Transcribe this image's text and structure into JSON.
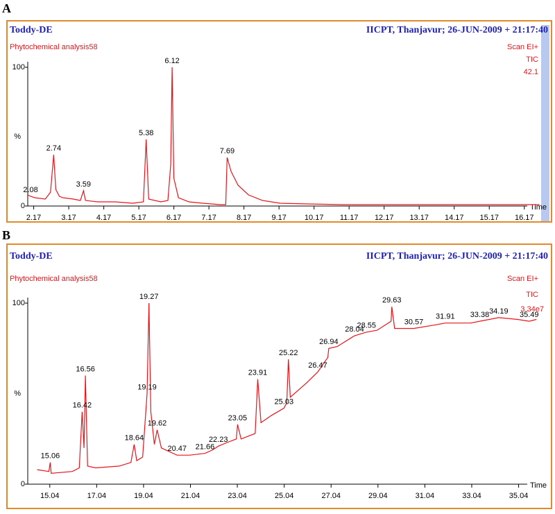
{
  "chart_data": [
    {
      "type": "line",
      "panel": "A",
      "title": "Toddy-DE",
      "subtitle": "IICPT, Thanjavur; 26-JUN-2009 + 21:17:40",
      "method": "Phytochemical analysis58",
      "scan": "Scan EI+",
      "trace": "TIC",
      "intensity": "42.1",
      "y_label": "%",
      "x_label": "Time",
      "xlim": [
        2.0,
        16.65
      ],
      "xticks": [
        2.17,
        3.17,
        4.17,
        5.17,
        6.17,
        7.17,
        8.17,
        9.17,
        10.17,
        11.17,
        12.17,
        13.17,
        14.17,
        15.17,
        16.17
      ],
      "ylim": [
        0,
        100
      ],
      "yticks": [
        0,
        100
      ],
      "series": [
        {
          "name": "TIC",
          "color": "#e8141a",
          "x": [
            2.0,
            2.08,
            2.2,
            2.5,
            2.65,
            2.74,
            2.8,
            2.9,
            3.0,
            3.3,
            3.5,
            3.59,
            3.65,
            4.0,
            4.5,
            5.0,
            5.3,
            5.38,
            5.45,
            5.8,
            6.0,
            6.08,
            6.12,
            6.17,
            6.3,
            6.6,
            7.0,
            7.5,
            7.65,
            7.69,
            7.8,
            8.0,
            8.3,
            8.7,
            9.2,
            10.0,
            11.0,
            13.0,
            16.6
          ],
          "values": [
            8,
            7,
            6,
            5,
            10,
            37,
            12,
            7,
            6,
            5,
            4,
            11,
            4,
            3,
            3,
            2,
            3,
            48,
            5,
            3,
            4,
            30,
            100,
            20,
            6,
            3,
            2,
            1,
            1,
            35,
            25,
            15,
            8,
            4,
            2,
            1.5,
            1,
            1,
            1
          ]
        }
      ],
      "peaks": [
        {
          "x": 2.08,
          "y": 7
        },
        {
          "x": 2.74,
          "y": 37
        },
        {
          "x": 3.59,
          "y": 11
        },
        {
          "x": 5.38,
          "y": 48
        },
        {
          "x": 6.12,
          "y": 100
        },
        {
          "x": 7.69,
          "y": 35
        }
      ]
    },
    {
      "type": "line",
      "panel": "B",
      "title": "Toddy-DE",
      "subtitle": "IICPT, Thanjavur; 26-JUN-2009 + 21:17:40",
      "method": "Phytochemical analysis58",
      "scan": "Scan EI+",
      "trace": "TIC",
      "intensity": "3.34e7",
      "y_label": "%",
      "x_label": "Time",
      "xlim": [
        14.1,
        36.0
      ],
      "xticks": [
        15.04,
        17.04,
        19.04,
        21.04,
        23.04,
        25.04,
        27.04,
        29.04,
        31.04,
        33.04,
        35.04
      ],
      "ylim": [
        0,
        100
      ],
      "yticks": [
        0,
        100
      ],
      "series": [
        {
          "name": "TIC",
          "color": "#e8141a",
          "x": [
            14.5,
            15.0,
            15.06,
            15.1,
            16.0,
            16.3,
            16.42,
            16.5,
            16.56,
            16.65,
            17.0,
            18.0,
            18.5,
            18.64,
            18.75,
            19.0,
            19.19,
            19.27,
            19.35,
            19.5,
            19.62,
            19.8,
            20.47,
            21.0,
            21.66,
            22.0,
            22.23,
            22.6,
            23.0,
            23.05,
            23.2,
            23.8,
            23.91,
            24.05,
            24.5,
            25.03,
            25.15,
            25.22,
            25.3,
            26.0,
            26.47,
            26.9,
            26.94,
            27.3,
            28.04,
            28.55,
            29.0,
            29.6,
            29.63,
            29.75,
            30.57,
            31.5,
            31.91,
            33.0,
            33.38,
            34.19,
            35.0,
            35.49,
            35.8
          ],
          "values": [
            8,
            7,
            12,
            6,
            7,
            9,
            40,
            20,
            60,
            10,
            9,
            10,
            12,
            22,
            13,
            15,
            50,
            100,
            40,
            22,
            30,
            20,
            16,
            16,
            17,
            19,
            21,
            23,
            25,
            33,
            25,
            28,
            58,
            34,
            38,
            42,
            45,
            69,
            48,
            56,
            62,
            70,
            75,
            76,
            82,
            84,
            85,
            90,
            98,
            86,
            86,
            88,
            89,
            89,
            90,
            92,
            91,
            90,
            91
          ]
        }
      ],
      "peaks": [
        {
          "x": 15.06,
          "y": 12
        },
        {
          "x": 16.42,
          "y": 40
        },
        {
          "x": 16.56,
          "y": 60
        },
        {
          "x": 18.64,
          "y": 22
        },
        {
          "x": 19.19,
          "y": 50
        },
        {
          "x": 19.27,
          "y": 100
        },
        {
          "x": 19.62,
          "y": 30
        },
        {
          "x": 20.47,
          "y": 16
        },
        {
          "x": 21.66,
          "y": 17
        },
        {
          "x": 22.23,
          "y": 21
        },
        {
          "x": 23.05,
          "y": 33
        },
        {
          "x": 23.91,
          "y": 58
        },
        {
          "x": 25.03,
          "y": 42
        },
        {
          "x": 25.22,
          "y": 69
        },
        {
          "x": 26.47,
          "y": 62
        },
        {
          "x": 26.94,
          "y": 75
        },
        {
          "x": 28.04,
          "y": 82
        },
        {
          "x": 28.55,
          "y": 84
        },
        {
          "x": 29.63,
          "y": 98
        },
        {
          "x": 30.57,
          "y": 86
        },
        {
          "x": 31.91,
          "y": 89
        },
        {
          "x": 33.38,
          "y": 90
        },
        {
          "x": 34.19,
          "y": 92
        },
        {
          "x": 35.49,
          "y": 90
        }
      ]
    }
  ]
}
